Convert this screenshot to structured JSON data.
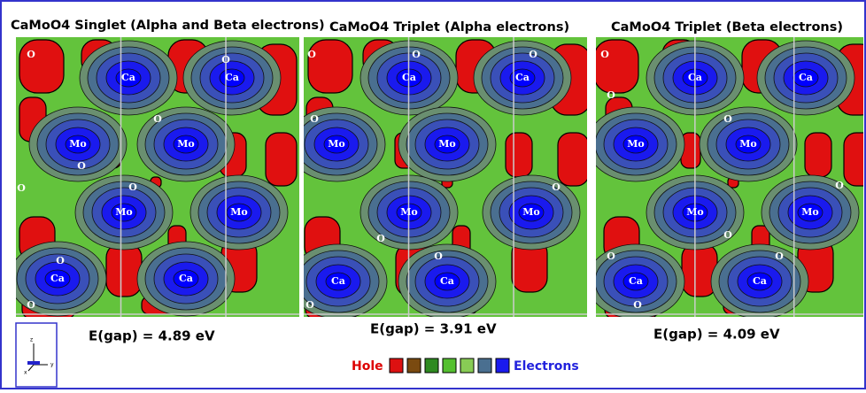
{
  "panels": [
    {
      "title": "CaMoO4 Singlet (Alpha and Beta electrons)",
      "gap": "E(gap) = 4.89 eV",
      "atoms": [
        "Ca",
        "Ca",
        "Mo",
        "Mo",
        "Mo",
        "Mo",
        "Ca",
        "Ca",
        "O",
        "O",
        "O",
        "O",
        "O",
        "O",
        "O",
        "O"
      ]
    },
    {
      "title": "CaMoO4 Triplet (Alpha electrons)",
      "gap": "E(gap) = 3.91 eV",
      "atoms": [
        "Ca",
        "Ca",
        "Mo",
        "Mo",
        "Mo",
        "Mo",
        "Ca",
        "Ca",
        "O",
        "O",
        "O",
        "O",
        "O",
        "O",
        "O",
        "O"
      ]
    },
    {
      "title": "CaMoO4 Triplet (Beta electrons)",
      "gap": "E(gap) = 4.09 eV",
      "atoms": [
        "Ca",
        "Ca",
        "Mo",
        "Mo",
        "Mo",
        "Mo",
        "Ca",
        "Ca",
        "O",
        "O",
        "O",
        "O",
        "O",
        "O",
        "O",
        "O"
      ]
    }
  ],
  "legend": {
    "low": "Hole",
    "high": "Electrons"
  },
  "axes": {
    "z": "z",
    "y": "y",
    "x": "x"
  }
}
